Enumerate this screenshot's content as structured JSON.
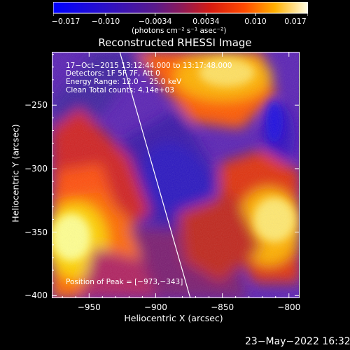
{
  "chart_data": {
    "type": "heatmap",
    "title": "Reconstructed RHESSI Image",
    "xlabel": "Heliocentric X (arcsec)",
    "ylabel": "Heliocentric Y (arcsec)",
    "xlim": [
      -978,
      -792
    ],
    "ylim": [
      -402,
      -208
    ],
    "x_ticks": [
      "−950",
      "−900",
      "−850",
      "−800"
    ],
    "x_tick_values": [
      -950,
      -900,
      -850,
      -800
    ],
    "y_ticks": [
      "−250",
      "−300",
      "−350",
      "−400"
    ],
    "y_tick_values": [
      -250,
      -300,
      -350,
      -400
    ],
    "colorbar": {
      "range": [
        -0.017,
        0.017
      ],
      "ticks": [
        "−0.017",
        "−0.010",
        "−0.0034",
        "0.0034",
        "0.010",
        "0.017"
      ],
      "tick_values": [
        -0.017,
        -0.01,
        -0.0034,
        0.0034,
        0.01,
        0.017
      ],
      "unit_label": "(photons cm⁻² s⁻¹ asec⁻²)"
    },
    "annotations": [
      "17−Oct−2015 13:12:44.000 to 13:17:48.000",
      "Detectors: 1F 5F 7F, Att 0",
      "Energy Range: 12.0 − 25.0 keV",
      "Clean    Total counts: 4.14e+03"
    ],
    "peak_label": "Position of Peak = [−973,−343]",
    "peak_position": [
      -973,
      -343
    ],
    "limb_line": [
      [
        -927,
        -208
      ],
      [
        -874,
        -402
      ]
    ],
    "grid": false
  },
  "footer": {
    "date": "23−May−2022 16:32"
  }
}
